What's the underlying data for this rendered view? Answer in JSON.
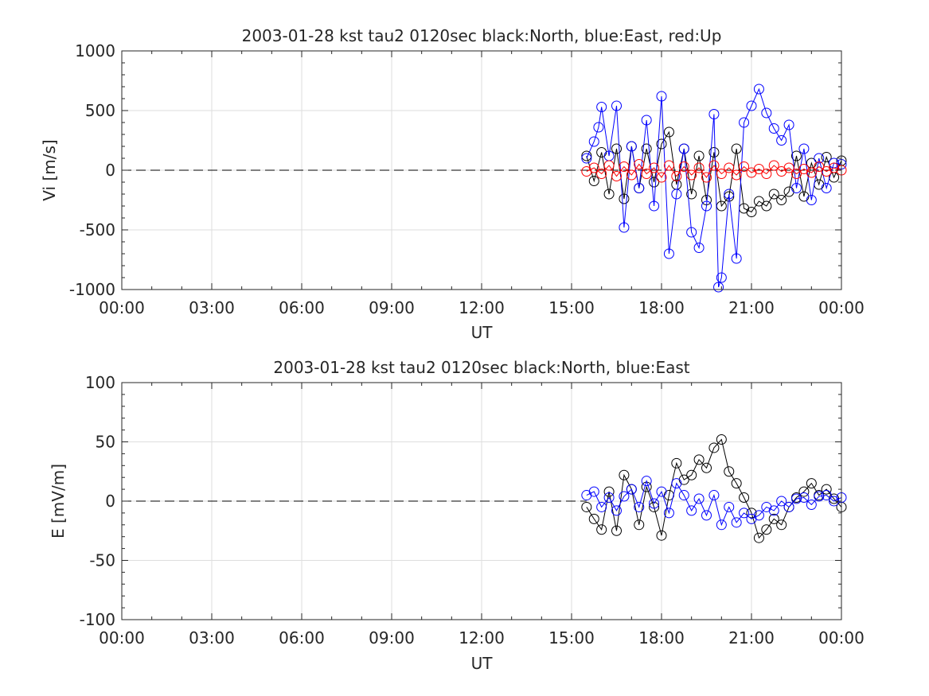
{
  "chart_data": [
    {
      "type": "scatter",
      "title": "2003-01-28 kst tau2 0120sec black:North, blue:East, red:Up",
      "xlabel": "UT",
      "ylabel": "Vi [m/s]",
      "xlim": [
        0,
        24
      ],
      "ylim": [
        -1000,
        1000
      ],
      "x_ticks": [
        0,
        3,
        6,
        9,
        12,
        15,
        18,
        21,
        24
      ],
      "x_tick_labels": [
        "00:00",
        "03:00",
        "06:00",
        "09:00",
        "12:00",
        "15:00",
        "18:00",
        "21:00",
        "00:00"
      ],
      "y_ticks": [
        -1000,
        -500,
        0,
        500,
        1000
      ],
      "y_tick_labels": [
        "-1000",
        "-500",
        "0",
        "500",
        "1000"
      ],
      "grid": true,
      "zero_line": {
        "style": "dashed",
        "y": 0,
        "x_range": [
          0,
          24
        ]
      },
      "marker": "circle",
      "series": [
        {
          "color": "#000000",
          "x": [
            15.5,
            15.75,
            16.0,
            16.25,
            16.5,
            16.75,
            17.0,
            17.25,
            17.5,
            17.75,
            18.0,
            18.25,
            18.5,
            18.75,
            19.0,
            19.25,
            19.5,
            19.75,
            20.0,
            20.25,
            20.5,
            20.75,
            21.0,
            21.25,
            21.5,
            21.75,
            22.0,
            22.25,
            22.5,
            22.75,
            23.0,
            23.25,
            23.5,
            23.75,
            24.0
          ],
          "y": [
            120,
            -90,
            150,
            -200,
            180,
            -240,
            200,
            -150,
            180,
            -100,
            220,
            320,
            -120,
            180,
            -200,
            120,
            -250,
            150,
            -300,
            -220,
            180,
            -320,
            -350,
            -260,
            -300,
            -200,
            -250,
            -180,
            120,
            -220,
            60,
            -120,
            110,
            -60,
            80
          ]
        },
        {
          "color": "#0000ff",
          "x": [
            15.5,
            15.75,
            15.9,
            16.0,
            16.25,
            16.5,
            16.75,
            17.0,
            17.25,
            17.5,
            17.75,
            18.0,
            18.25,
            18.5,
            18.75,
            19.0,
            19.25,
            19.5,
            19.75,
            19.9,
            20.0,
            20.25,
            20.5,
            20.75,
            21.0,
            21.25,
            21.5,
            21.75,
            22.0,
            22.25,
            22.5,
            22.75,
            23.0,
            23.25,
            23.5,
            23.75,
            24.0
          ],
          "y": [
            100,
            240,
            360,
            530,
            120,
            540,
            -480,
            200,
            -150,
            420,
            -300,
            620,
            -700,
            -200,
            180,
            -520,
            -650,
            -300,
            470,
            -980,
            -900,
            -200,
            -740,
            400,
            540,
            680,
            480,
            350,
            250,
            380,
            -150,
            180,
            -250,
            100,
            -150,
            60,
            50
          ]
        },
        {
          "color": "#ff0000",
          "x": [
            15.5,
            15.75,
            16.0,
            16.25,
            16.5,
            16.75,
            17.0,
            17.25,
            17.5,
            17.75,
            18.0,
            18.25,
            18.5,
            18.75,
            19.0,
            19.25,
            19.5,
            19.75,
            20.0,
            20.25,
            20.5,
            20.75,
            21.0,
            21.25,
            21.5,
            21.75,
            22.0,
            22.25,
            22.5,
            22.75,
            23.0,
            23.25,
            23.5,
            23.75,
            24.0
          ],
          "y": [
            -10,
            20,
            -30,
            40,
            -50,
            30,
            -40,
            50,
            -30,
            20,
            -60,
            40,
            -50,
            30,
            -40,
            20,
            -60,
            40,
            -30,
            20,
            -40,
            30,
            -20,
            10,
            -30,
            40,
            -10,
            20,
            -30,
            10,
            -20,
            30,
            -10,
            20,
            0
          ]
        }
      ]
    },
    {
      "type": "scatter",
      "title": "2003-01-28 kst tau2 0120sec black:North, blue:East",
      "xlabel": "UT",
      "ylabel": "E [mV/m]",
      "xlim": [
        0,
        24
      ],
      "ylim": [
        -100,
        100
      ],
      "x_ticks": [
        0,
        3,
        6,
        9,
        12,
        15,
        18,
        21,
        24
      ],
      "x_tick_labels": [
        "00:00",
        "03:00",
        "06:00",
        "09:00",
        "12:00",
        "15:00",
        "18:00",
        "21:00",
        "00:00"
      ],
      "y_ticks": [
        -100,
        -50,
        0,
        50,
        100
      ],
      "y_tick_labels": [
        "-100",
        "-50",
        "0",
        "50",
        "100"
      ],
      "grid": true,
      "zero_line": {
        "style": "dashed",
        "y": 0,
        "x_range": [
          0,
          15.5
        ]
      },
      "marker": "circle",
      "series": [
        {
          "color": "#000000",
          "x": [
            15.5,
            15.75,
            16.0,
            16.25,
            16.5,
            16.75,
            17.0,
            17.25,
            17.5,
            17.75,
            18.0,
            18.25,
            18.5,
            18.75,
            19.0,
            19.25,
            19.5,
            19.75,
            20.0,
            20.25,
            20.5,
            20.75,
            21.0,
            21.25,
            21.5,
            21.75,
            22.0,
            22.25,
            22.5,
            22.75,
            23.0,
            23.25,
            23.5,
            23.75,
            24.0
          ],
          "y": [
            -5,
            -15,
            -24,
            8,
            -25,
            22,
            10,
            -20,
            12,
            -5,
            -29,
            5,
            32,
            18,
            22,
            35,
            28,
            45,
            52,
            25,
            15,
            3,
            -10,
            -31,
            -24,
            -15,
            -20,
            -5,
            3,
            8,
            15,
            5,
            10,
            2,
            -5
          ]
        },
        {
          "color": "#0000ff",
          "x": [
            15.5,
            15.75,
            16.0,
            16.25,
            16.5,
            16.75,
            17.0,
            17.25,
            17.5,
            17.75,
            18.0,
            18.25,
            18.5,
            18.75,
            19.0,
            19.25,
            19.5,
            19.75,
            20.0,
            20.25,
            20.5,
            20.75,
            21.0,
            21.25,
            21.5,
            21.75,
            22.0,
            22.25,
            22.5,
            22.75,
            23.0,
            23.25,
            23.5,
            23.75,
            24.0
          ],
          "y": [
            5,
            8,
            -5,
            3,
            -8,
            4,
            10,
            -5,
            17,
            -2,
            8,
            -10,
            15,
            5,
            -8,
            2,
            -12,
            5,
            -20,
            -5,
            -18,
            -10,
            -15,
            -12,
            -5,
            -8,
            0,
            -5,
            2,
            3,
            -3,
            4,
            5,
            0,
            3
          ]
        }
      ]
    }
  ]
}
